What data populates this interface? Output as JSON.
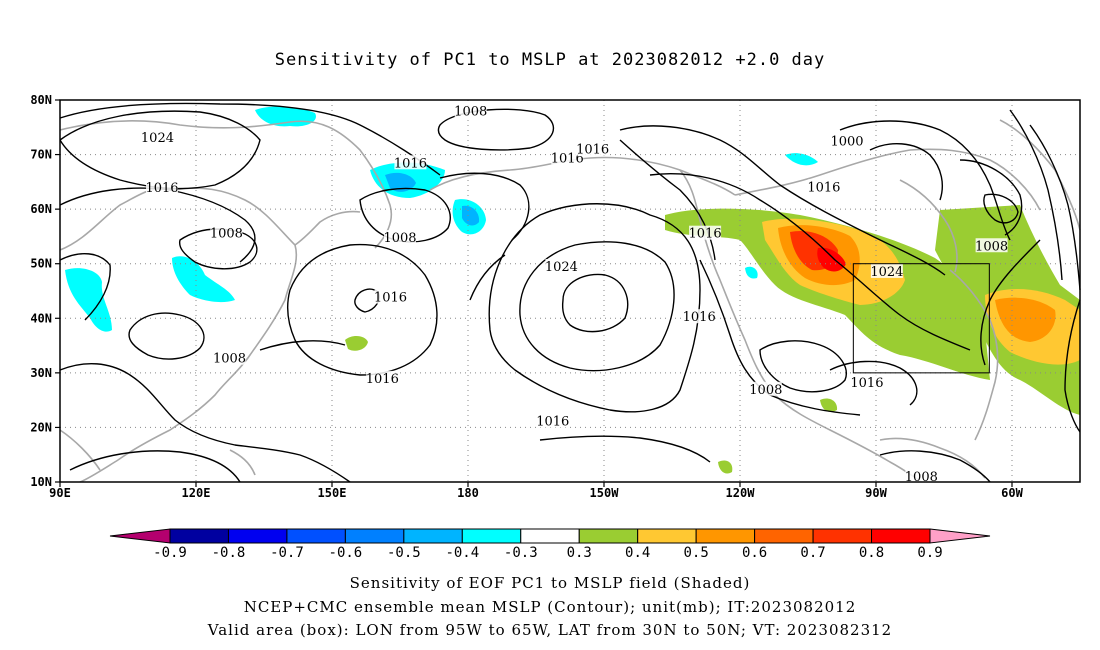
{
  "title": "Sensitivity of PC1 to MSLP at 2023082012 +2.0 day",
  "map": {
    "lat_labels": [
      "80N",
      "70N",
      "60N",
      "50N",
      "40N",
      "30N",
      "20N",
      "10N"
    ],
    "lon_labels": [
      "90E",
      "120E",
      "150E",
      "180",
      "150W",
      "120W",
      "90W",
      "60W"
    ],
    "contour_labels": [
      {
        "text": "1008",
        "lon": 180.6,
        "lat": 77.9
      },
      {
        "text": "1024",
        "lon": 111.5,
        "lat": 73.0
      },
      {
        "text": "1016",
        "lon": 112.5,
        "lat": 63.9
      },
      {
        "text": "1016",
        "lon": 167.3,
        "lat": 68.4
      },
      {
        "text": "1016",
        "lon": 201.9,
        "lat": 69.3
      },
      {
        "text": "1016",
        "lon": 207.5,
        "lat": 70.9
      },
      {
        "text": "1000",
        "lon": 263.6,
        "lat": 72.4
      },
      {
        "text": "1016",
        "lon": 258.5,
        "lat": 64.0
      },
      {
        "text": "1008",
        "lon": 126.7,
        "lat": 55.5
      },
      {
        "text": "1008",
        "lon": 165.0,
        "lat": 54.7
      },
      {
        "text": "1008",
        "lon": 295.5,
        "lat": 53.2
      },
      {
        "text": "1016",
        "lon": 232.3,
        "lat": 55.5
      },
      {
        "text": "1024",
        "lon": 200.6,
        "lat": 49.4
      },
      {
        "text": "1024",
        "lon": 272.4,
        "lat": 48.5
      },
      {
        "text": "1016",
        "lon": 162.9,
        "lat": 43.8
      },
      {
        "text": "1016",
        "lon": 231.0,
        "lat": 40.2
      },
      {
        "text": "1008",
        "lon": 127.4,
        "lat": 32.6
      },
      {
        "text": "1016",
        "lon": 161.1,
        "lat": 28.9
      },
      {
        "text": "1008",
        "lon": 245.7,
        "lat": 26.9
      },
      {
        "text": "1016",
        "lon": 268.0,
        "lat": 28.1
      },
      {
        "text": "1016",
        "lon": 198.7,
        "lat": 21.1
      },
      {
        "text": "1008",
        "lon": 280.0,
        "lat": 10.9
      }
    ],
    "valid_box": {
      "lon_west": 265,
      "lon_east": 295,
      "lat_south": 30,
      "lat_north": 50
    }
  },
  "colorbar": {
    "labels": [
      "-0.9",
      "-0.8",
      "-0.7",
      "-0.6",
      "-0.5",
      "-0.4",
      "-0.3",
      "0.3",
      "0.4",
      "0.5",
      "0.6",
      "0.7",
      "0.8",
      "0.9"
    ],
    "colors": [
      "#b4006e",
      "#0000a0",
      "#0000f0",
      "#0050ff",
      "#0080ff",
      "#00b4ff",
      "#00ffff",
      "#ffffff",
      "#9acd32",
      "#ffc832",
      "#ff9600",
      "#ff6400",
      "#ff3200",
      "#ff0000",
      "#ffa0c8"
    ]
  },
  "captions": {
    "line1": "Sensitivity of EOF PC1 to MSLP field (Shaded)",
    "line2": "NCEP+CMC ensemble mean MSLP (Contour); unit(mb); IT:2023082012",
    "line3": "Valid area (box): LON from 95W to 65W, LAT from 30N to 50N; VT: 2023082312"
  }
}
